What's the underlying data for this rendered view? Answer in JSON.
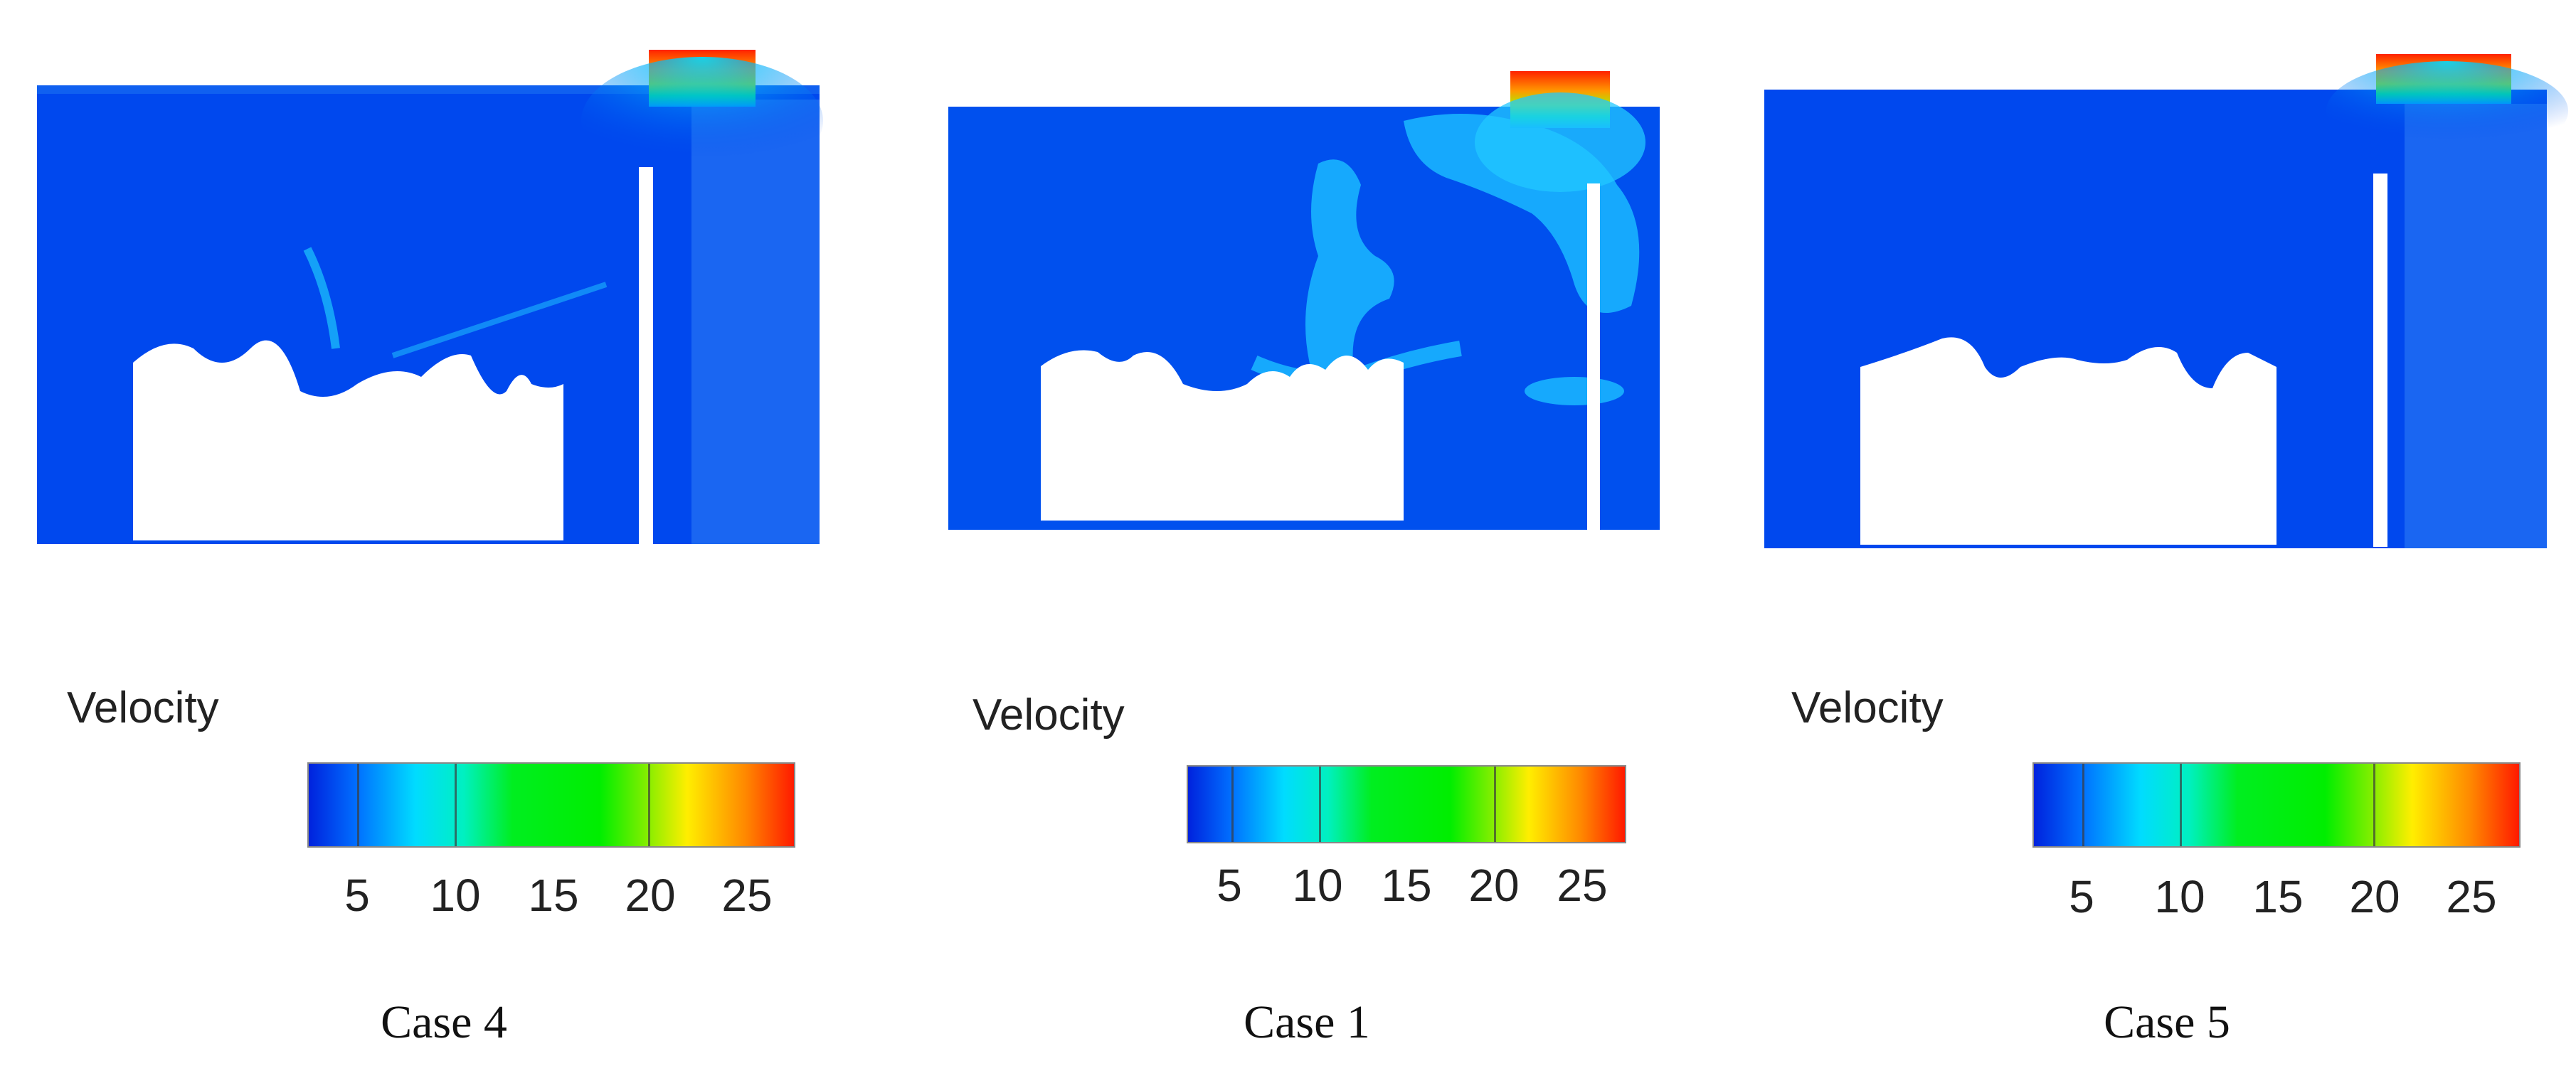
{
  "colors": {
    "low": "#0044ee",
    "cyan": "#00d8ff",
    "green": "#00ee10",
    "yellow": "#ffee00",
    "high": "#ff2200",
    "background": "#ffffff"
  },
  "colorbar_ticks": [
    "5",
    "10",
    "15",
    "20",
    "25"
  ],
  "panels": [
    {
      "case_label": "Case 4",
      "velocity_label": "Velocity"
    },
    {
      "case_label": "Case 1",
      "velocity_label": "Velocity"
    },
    {
      "case_label": "Case 5",
      "velocity_label": "Velocity"
    }
  ]
}
